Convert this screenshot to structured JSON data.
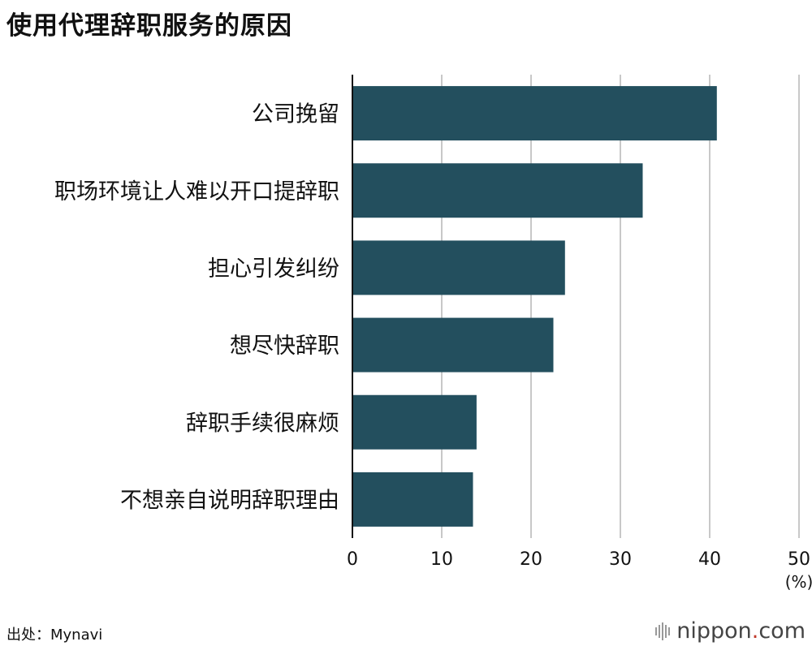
{
  "chart_data": {
    "type": "bar",
    "orientation": "horizontal",
    "title": "使用代理辞职服务的原因",
    "categories": [
      "公司挽留",
      "职场环境让人难以开口提辞职",
      "担心引发纠纷",
      "想尽快辞职",
      "辞职手续很麻烦",
      "不想亲自说明辞职理由"
    ],
    "values": [
      40.8,
      32.5,
      23.8,
      22.5,
      13.9,
      13.5
    ],
    "xlim": [
      0,
      50
    ],
    "xticks": [
      0,
      10,
      20,
      30,
      40,
      50
    ],
    "unit_label": "(%)",
    "grid": true,
    "bar_color": "#234f5e"
  },
  "source": "出处：Mynavi",
  "logo": {
    "name": "nippon",
    "dot": ".",
    "suffix": "com"
  },
  "icons": {
    "logo_mark": "sound-bars-icon"
  }
}
